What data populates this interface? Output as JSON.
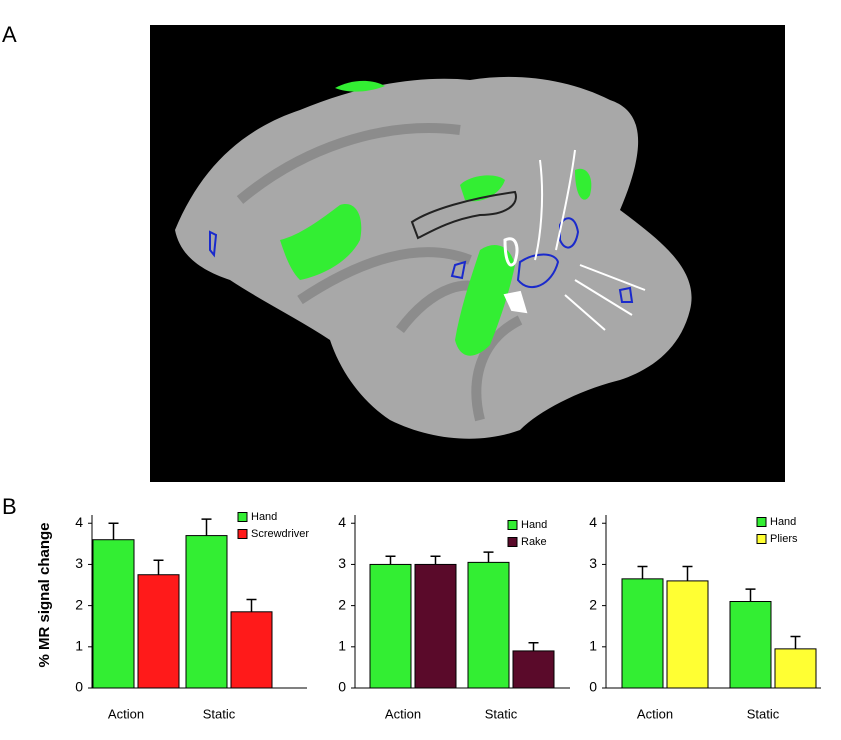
{
  "panel_labels": [
    "A",
    "B"
  ],
  "y_axis_label": "% MR signal change",
  "chart_data": [
    {
      "type": "bar",
      "categories": [
        "Action",
        "Static"
      ],
      "ylim": [
        0,
        4.2
      ],
      "yticks": [
        0,
        1,
        2,
        3,
        4
      ],
      "series": [
        {
          "name": "Hand",
          "color": "#33ee33",
          "values": [
            3.6,
            3.7
          ],
          "errors": [
            0.4,
            0.4
          ]
        },
        {
          "name": "Screwdriver",
          "color": "#ff1a1a",
          "values": [
            2.75,
            1.85
          ],
          "errors": [
            0.35,
            0.3
          ]
        }
      ]
    },
    {
      "type": "bar",
      "categories": [
        "Action",
        "Static"
      ],
      "ylim": [
        0,
        4.2
      ],
      "yticks": [
        0,
        1,
        2,
        3,
        4
      ],
      "series": [
        {
          "name": "Hand",
          "color": "#33ee33",
          "values": [
            3.0,
            3.05
          ],
          "errors": [
            0.2,
            0.25
          ]
        },
        {
          "name": "Rake",
          "color": "#5a0a2a",
          "values": [
            3.0,
            0.9
          ],
          "errors": [
            0.2,
            0.2
          ]
        }
      ]
    },
    {
      "type": "bar",
      "categories": [
        "Action",
        "Static"
      ],
      "ylim": [
        0,
        4.2
      ],
      "yticks": [
        0,
        1,
        2,
        3,
        4
      ],
      "series": [
        {
          "name": "Hand",
          "color": "#33ee33",
          "values": [
            2.65,
            2.1
          ],
          "errors": [
            0.3,
            0.3
          ]
        },
        {
          "name": "Pliers",
          "color": "#ffff33",
          "values": [
            2.6,
            0.95
          ],
          "errors": [
            0.35,
            0.3
          ]
        }
      ]
    }
  ]
}
